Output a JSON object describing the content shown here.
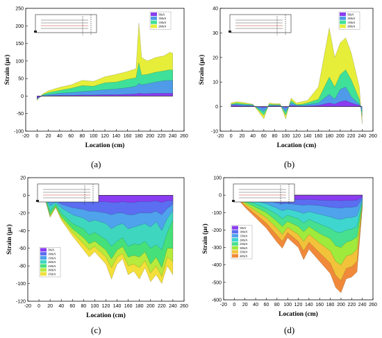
{
  "chart_data": [
    {
      "panel": "(a)",
      "type": "area",
      "xlabel": "Location (cm)",
      "ylabel": "Strain (με)",
      "xlim": [
        -20,
        260
      ],
      "ylim": [
        -100,
        250
      ],
      "xticks": [
        -20,
        0,
        20,
        40,
        60,
        80,
        100,
        120,
        140,
        160,
        180,
        200,
        220,
        240,
        260
      ],
      "yticks": [
        -100,
        -50,
        0,
        50,
        100,
        150,
        200,
        250
      ],
      "legend_position": "top-right",
      "x": [
        0,
        10,
        20,
        40,
        60,
        80,
        100,
        120,
        140,
        160,
        175,
        180,
        185,
        195,
        210,
        225,
        235,
        240
      ],
      "series": [
        {
          "name": "50kN",
          "color": "#8a3cf0",
          "values": [
            -5,
            0,
            1,
            2,
            2,
            3,
            3,
            4,
            4,
            5,
            6,
            8,
            7,
            7,
            8,
            8,
            8,
            8
          ]
        },
        {
          "name": "100kN",
          "color": "#4f9be9",
          "values": [
            -8,
            2,
            4,
            8,
            10,
            13,
            15,
            18,
            20,
            24,
            28,
            36,
            32,
            35,
            40,
            44,
            45,
            44
          ]
        },
        {
          "name": "150kN",
          "color": "#3fe09a",
          "values": [
            -10,
            4,
            10,
            16,
            22,
            30,
            28,
            38,
            40,
            48,
            52,
            95,
            60,
            62,
            68,
            72,
            75,
            74
          ]
        },
        {
          "name": "200kN",
          "color": "#e6ee3a",
          "values": [
            -12,
            6,
            15,
            25,
            32,
            45,
            42,
            55,
            62,
            70,
            78,
            208,
            110,
            100,
            110,
            115,
            125,
            122
          ]
        }
      ]
    },
    {
      "panel": "(b)",
      "type": "area",
      "xlabel": "Location (cm)",
      "ylabel": "Strain (με)",
      "xlim": [
        -20,
        260
      ],
      "ylim": [
        -10,
        40
      ],
      "xticks": [
        -20,
        0,
        20,
        40,
        60,
        80,
        100,
        120,
        140,
        160,
        180,
        200,
        220,
        240,
        260
      ],
      "yticks": [
        -10,
        0,
        10,
        20,
        30,
        40
      ],
      "legend_position": "top-right",
      "x": [
        0,
        10,
        20,
        40,
        60,
        70,
        80,
        90,
        100,
        110,
        120,
        130,
        140,
        160,
        180,
        190,
        200,
        210,
        220,
        235,
        240
      ],
      "series": [
        {
          "name": "50kN",
          "color": "#8a3cf0",
          "values": [
            0.5,
            0.5,
            0.3,
            0.2,
            -0.5,
            0.2,
            0.3,
            0.2,
            -0.5,
            0.5,
            0.3,
            0.2,
            0.2,
            0.5,
            1.5,
            1,
            2,
            2.5,
            1.5,
            0.5,
            0
          ]
        },
        {
          "name": "100kN",
          "color": "#4f9be9",
          "values": [
            0.8,
            1,
            0.8,
            0.5,
            -2,
            0.5,
            0.5,
            0.5,
            -2,
            1.5,
            0.5,
            0.5,
            0.8,
            1.5,
            5,
            3,
            7,
            8,
            4,
            1,
            -2
          ]
        },
        {
          "name": "150kN",
          "color": "#3fe09a",
          "values": [
            1,
            1.5,
            1.2,
            0.8,
            -3.5,
            1,
            0.8,
            0.8,
            -3.5,
            2.5,
            0.8,
            1,
            1.5,
            3,
            12,
            8,
            13,
            15,
            11,
            3,
            -4
          ]
        },
        {
          "name": "200kN",
          "color": "#e6ee3a",
          "values": [
            1.5,
            2,
            1.8,
            1,
            -5,
            1.5,
            1.2,
            1.2,
            -5,
            3.5,
            1.5,
            2,
            2.5,
            8,
            32,
            20,
            26,
            28,
            22,
            8,
            -7
          ]
        }
      ]
    },
    {
      "panel": "(c)",
      "type": "area",
      "xlabel": "Location (cm)",
      "ylabel": "Strain (με)",
      "xlim": [
        -20,
        260
      ],
      "ylim": [
        -120,
        20
      ],
      "xticks": [
        -20,
        0,
        20,
        40,
        60,
        80,
        100,
        120,
        140,
        160,
        180,
        200,
        220,
        240,
        260
      ],
      "yticks": [
        -120,
        -100,
        -80,
        -60,
        -40,
        -20,
        0,
        20
      ],
      "legend_position": "bottom-left",
      "x": [
        0,
        10,
        20,
        30,
        40,
        60,
        80,
        90,
        100,
        120,
        130,
        140,
        150,
        160,
        170,
        180,
        190,
        200,
        210,
        220,
        230,
        240
      ],
      "series": [
        {
          "name": "50kN",
          "color": "#8a3cf0",
          "values": [
            0,
            0,
            -2,
            -3,
            -4,
            -6,
            -6,
            -7,
            -7,
            -7,
            -8,
            -8,
            -7,
            -8,
            -8,
            -7,
            -7,
            -7,
            -6,
            -8,
            -6,
            -6
          ]
        },
        {
          "name": "100kN",
          "color": "#5b6df0",
          "values": [
            0,
            0,
            -5,
            -6,
            -10,
            -14,
            -16,
            -18,
            -18,
            -20,
            -22,
            -20,
            -20,
            -22,
            -22,
            -20,
            -20,
            -20,
            -18,
            -22,
            -15,
            -10
          ]
        },
        {
          "name": "150kN",
          "color": "#4fa2ec",
          "values": [
            0,
            -1,
            -12,
            -8,
            -14,
            -22,
            -26,
            -30,
            -28,
            -32,
            -38,
            -34,
            -32,
            -38,
            -36,
            -34,
            -32,
            -36,
            -30,
            -40,
            -26,
            -18
          ]
        },
        {
          "name": "200kN",
          "color": "#3fd6c0",
          "values": [
            0,
            -1,
            -18,
            -10,
            -20,
            -32,
            -38,
            -45,
            -42,
            -50,
            -58,
            -52,
            -48,
            -58,
            -55,
            -56,
            -52,
            -60,
            -56,
            -62,
            -42,
            -28
          ]
        },
        {
          "name": "250kN",
          "color": "#46e07a",
          "values": [
            0,
            -1,
            -22,
            -12,
            -24,
            -38,
            -48,
            -55,
            -52,
            -62,
            -72,
            -62,
            -58,
            -70,
            -68,
            -70,
            -64,
            -78,
            -70,
            -82,
            -60,
            -60
          ]
        },
        {
          "name": "300kN",
          "color": "#b6ea3c",
          "values": [
            0,
            -2,
            -24,
            -13,
            -26,
            -42,
            -55,
            -62,
            -58,
            -70,
            -82,
            -70,
            -66,
            -80,
            -78,
            -82,
            -74,
            -88,
            -80,
            -92,
            -70,
            -75
          ]
        },
        {
          "name": "350kN",
          "color": "#f2df3a",
          "values": [
            0,
            -2,
            -25,
            -14,
            -28,
            -46,
            -62,
            -70,
            -64,
            -78,
            -95,
            -78,
            -72,
            -90,
            -86,
            -95,
            -82,
            -98,
            -90,
            -100,
            -80,
            -90
          ]
        }
      ]
    },
    {
      "panel": "(d)",
      "type": "area",
      "xlabel": "Location (cm)",
      "ylabel": "Strain (με)",
      "xlim": [
        -20,
        260
      ],
      "ylim": [
        -600,
        100
      ],
      "xticks": [
        -20,
        0,
        20,
        40,
        60,
        80,
        100,
        120,
        140,
        160,
        180,
        200,
        220,
        240,
        260
      ],
      "yticks": [
        -600,
        -500,
        -400,
        -300,
        -200,
        -100,
        0,
        100
      ],
      "legend_position": "bottom-left",
      "x": [
        0,
        20,
        40,
        60,
        80,
        90,
        100,
        120,
        130,
        140,
        160,
        180,
        190,
        200,
        210,
        220,
        230,
        240
      ],
      "series": [
        {
          "name": "50kN",
          "color": "#8a3cf0",
          "values": [
            0,
            -5,
            -10,
            -15,
            -20,
            -22,
            -22,
            -25,
            -25,
            -25,
            -28,
            -30,
            -30,
            -32,
            -30,
            -30,
            -28,
            -10
          ]
        },
        {
          "name": "100kN",
          "color": "#5b6df0",
          "values": [
            0,
            -10,
            -20,
            -30,
            -45,
            -50,
            -48,
            -55,
            -58,
            -55,
            -60,
            -70,
            -72,
            -75,
            -70,
            -70,
            -65,
            -20
          ]
        },
        {
          "name": "150kN",
          "color": "#4fa2ec",
          "values": [
            0,
            -20,
            -35,
            -50,
            -75,
            -90,
            -80,
            -95,
            -105,
            -95,
            -110,
            -125,
            -135,
            -140,
            -130,
            -128,
            -120,
            -30
          ]
        },
        {
          "name": "200kN",
          "color": "#3fd6d0",
          "values": [
            0,
            -30,
            -50,
            -75,
            -110,
            -135,
            -115,
            -135,
            -160,
            -140,
            -165,
            -190,
            -210,
            -215,
            -200,
            -195,
            -180,
            -40
          ]
        },
        {
          "name": "250kN",
          "color": "#46e090",
          "values": [
            0,
            -40,
            -70,
            -100,
            -150,
            -180,
            -150,
            -180,
            -210,
            -180,
            -220,
            -250,
            -290,
            -300,
            -270,
            -260,
            -240,
            -50
          ]
        },
        {
          "name": "300kN",
          "color": "#a0ea3c",
          "values": [
            0,
            -50,
            -90,
            -130,
            -190,
            -225,
            -185,
            -225,
            -265,
            -225,
            -275,
            -320,
            -380,
            -400,
            -350,
            -340,
            -310,
            -60
          ]
        },
        {
          "name": "350kN",
          "color": "#f2c23a",
          "values": [
            0,
            -60,
            -110,
            -160,
            -230,
            -265,
            -215,
            -265,
            -320,
            -270,
            -330,
            -390,
            -460,
            -490,
            -420,
            -410,
            -380,
            -70
          ]
        },
        {
          "name": "400kN",
          "color": "#f08a3a",
          "values": [
            0,
            -70,
            -130,
            -190,
            -270,
            -305,
            -245,
            -300,
            -370,
            -310,
            -380,
            -450,
            -530,
            -560,
            -480,
            -470,
            -440,
            -80
          ]
        }
      ]
    }
  ],
  "captions": [
    "(a)",
    "(b)",
    "(c)",
    "(d)"
  ],
  "colors": {
    "axis": "#000000",
    "frame": "#000000",
    "background": "#ffffff"
  }
}
